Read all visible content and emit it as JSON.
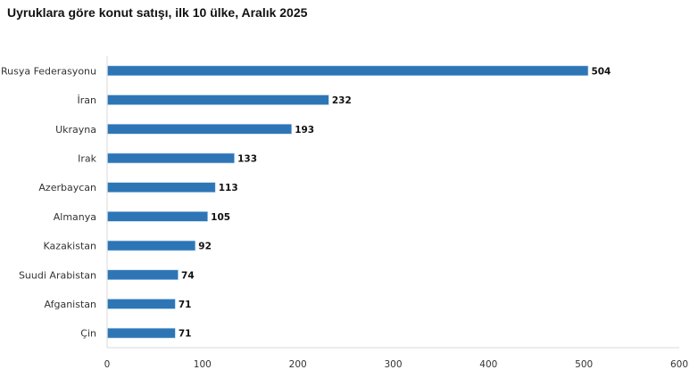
{
  "chart_data": {
    "type": "bar",
    "orientation": "horizontal",
    "title": "Uyruklara göre konut satışı, ilk 10 ülke, Aralık 2025",
    "categories": [
      "Rusya Federasyonu",
      "İran",
      "Ukrayna",
      "Irak",
      "Azerbaycan",
      "Almanya",
      "Kazakistan",
      "Suudi Arabistan",
      "Afganistan",
      "Çin"
    ],
    "values": [
      504,
      232,
      193,
      133,
      113,
      105,
      92,
      74,
      71,
      71
    ],
    "xlim": [
      0,
      600
    ],
    "xticks": [
      0,
      100,
      200,
      300,
      400,
      500,
      600
    ],
    "xlabel": "",
    "ylabel": "",
    "grid": false,
    "data_labels": true,
    "bar_color": "#2e75b6"
  }
}
